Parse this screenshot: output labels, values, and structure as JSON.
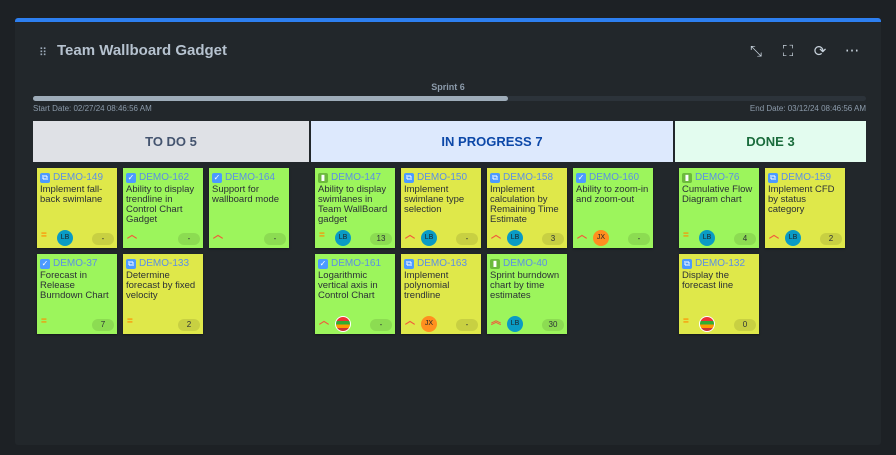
{
  "gadget": {
    "title": "Team Wallboard Gadget",
    "tools": [
      {
        "icon": "minimize-icon",
        "glyph": "⤡"
      },
      {
        "icon": "fullscreen-icon",
        "glyph": "⛶"
      },
      {
        "icon": "refresh-icon",
        "glyph": "⟳"
      },
      {
        "icon": "more-icon",
        "glyph": "···"
      }
    ]
  },
  "sprint": {
    "name": "Sprint 6",
    "progress_percent": 57,
    "start": "Start Date: 02/27/24 08:46:56 AM",
    "end": "End Date: 03/12/24 08:46:56 AM"
  },
  "colors": {
    "accent": "#2d7ff0",
    "card_green": "#9cf55c",
    "card_yellow": "#dfe84a",
    "key": "#5b8fe6"
  },
  "columns": [
    {
      "label": "TO DO 5",
      "bg": "#dfe1e6",
      "fg": "#44546f",
      "cards": [
        {
          "key": "DEMO-149",
          "type": "subtask",
          "summary": "Implement fall-back swimlane",
          "priority": "medium",
          "assignee": "LB",
          "estimate": "-",
          "color": "yellow"
        },
        {
          "key": "DEMO-162",
          "type": "task",
          "summary": "Ability to display trendline in Control Chart Gadget",
          "priority": "high",
          "assignee": "",
          "estimate": "-",
          "color": "green"
        },
        {
          "key": "DEMO-164",
          "type": "task",
          "summary": "Support for wallboard mode",
          "priority": "high",
          "assignee": "",
          "estimate": "-",
          "color": "green"
        },
        {
          "key": "DEMO-37",
          "type": "task",
          "summary": "Forecast in Release Burndown Chart",
          "priority": "medium",
          "assignee": "",
          "estimate": "7",
          "color": "green"
        },
        {
          "key": "DEMO-133",
          "type": "subtask",
          "summary": "Determine forecast by fixed velocity",
          "priority": "medium",
          "assignee": "",
          "estimate": "2",
          "color": "yellow"
        }
      ]
    },
    {
      "label": "IN PROGRESS 7",
      "bg": "#dde9fd",
      "fg": "#0c48a8",
      "cards": [
        {
          "key": "DEMO-147",
          "type": "story",
          "summary": "Ability to display swimlanes in Team WallBoard gadget",
          "priority": "medium",
          "assignee": "LB",
          "estimate": "13",
          "color": "green"
        },
        {
          "key": "DEMO-150",
          "type": "subtask",
          "summary": "Implement swimlane type selection",
          "priority": "high",
          "assignee": "LB",
          "estimate": "-",
          "color": "yellow"
        },
        {
          "key": "DEMO-158",
          "type": "subtask",
          "summary": "Implement calculation by Remaining Time Estimate",
          "priority": "high",
          "assignee": "LB",
          "estimate": "3",
          "color": "yellow"
        },
        {
          "key": "DEMO-160",
          "type": "task",
          "summary": "Ability to zoom-in and zoom-out",
          "priority": "high",
          "assignee": "JX",
          "estimate": "-",
          "color": "green"
        },
        {
          "key": "DEMO-161",
          "type": "task",
          "summary": "Logarithmic vertical axis in Control Chart",
          "priority": "high",
          "assignee": "avatar",
          "estimate": "-",
          "color": "green"
        },
        {
          "key": "DEMO-163",
          "type": "subtask",
          "summary": "Implement polynomial trendline",
          "priority": "high",
          "assignee": "JX",
          "estimate": "-",
          "color": "yellow"
        },
        {
          "key": "DEMO-40",
          "type": "story",
          "summary": "Sprint burndown chart by time estimates",
          "priority": "highest",
          "assignee": "LB",
          "estimate": "30",
          "color": "green"
        }
      ]
    },
    {
      "label": "DONE 3",
      "bg": "#e3fcef",
      "fg": "#1a6c3c",
      "cards": [
        {
          "key": "DEMO-76",
          "type": "story",
          "summary": "Cumulative Flow Diagram chart",
          "priority": "medium",
          "assignee": "LB",
          "estimate": "4",
          "color": "green"
        },
        {
          "key": "DEMO-159",
          "type": "subtask",
          "summary": "Implement CFD by status category",
          "priority": "high",
          "assignee": "LB",
          "estimate": "2",
          "color": "yellow"
        },
        {
          "key": "DEMO-132",
          "type": "subtask",
          "summary": "Display the forecast line",
          "priority": "medium",
          "assignee": "avatar",
          "estimate": "0",
          "color": "yellow"
        }
      ]
    }
  ]
}
